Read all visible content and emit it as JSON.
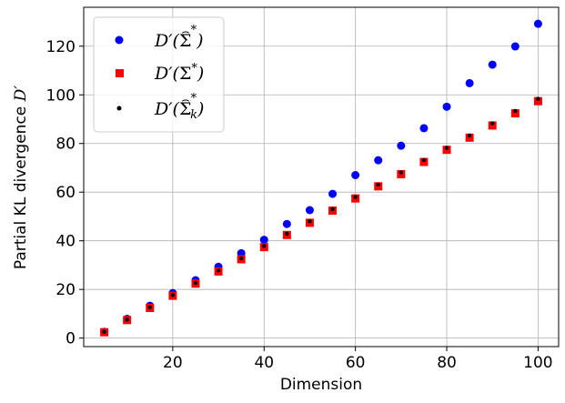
{
  "chart_data": {
    "type": "scatter",
    "xlabel": "Dimension",
    "ylabel": "Partial KL divergence D′",
    "xlim": [
      0.5,
      104.5
    ],
    "ylim": [
      -3.5,
      136
    ],
    "xticks": [
      20,
      40,
      60,
      80,
      100
    ],
    "yticks": [
      0,
      20,
      40,
      60,
      80,
      100,
      120
    ],
    "grid": true,
    "legend_position": "top-left",
    "x": [
      5,
      10,
      15,
      20,
      25,
      30,
      35,
      40,
      45,
      50,
      55,
      60,
      65,
      70,
      75,
      80,
      85,
      90,
      95,
      100
    ],
    "series": [
      {
        "name": "D′(Σ̂*)",
        "marker": "circle",
        "color": "#0000ff",
        "values": [
          2.6,
          7.9,
          13.3,
          18.5,
          23.8,
          29.3,
          34.9,
          40.4,
          46.9,
          52.6,
          59.3,
          67.0,
          73.1,
          79.1,
          86.3,
          95.1,
          104.8,
          112.4,
          119.9,
          129.2
        ]
      },
      {
        "name": "D′(Σ*)",
        "marker": "square",
        "color": "#ff0000",
        "values": [
          2.4,
          7.4,
          12.4,
          17.4,
          22.4,
          27.4,
          32.4,
          37.4,
          42.4,
          47.4,
          52.4,
          57.4,
          62.4,
          67.4,
          72.4,
          77.4,
          82.4,
          87.4,
          92.4,
          97.4
        ]
      },
      {
        "name": "D′(Σ̂k*)",
        "marker": "dot",
        "color": "#000000",
        "values": [
          2.6,
          7.6,
          12.7,
          17.7,
          22.7,
          27.8,
          32.8,
          37.9,
          42.9,
          48.0,
          53.0,
          58.0,
          63.1,
          68.1,
          73.2,
          78.2,
          83.3,
          88.3,
          93.4,
          98.4
        ]
      }
    ]
  }
}
